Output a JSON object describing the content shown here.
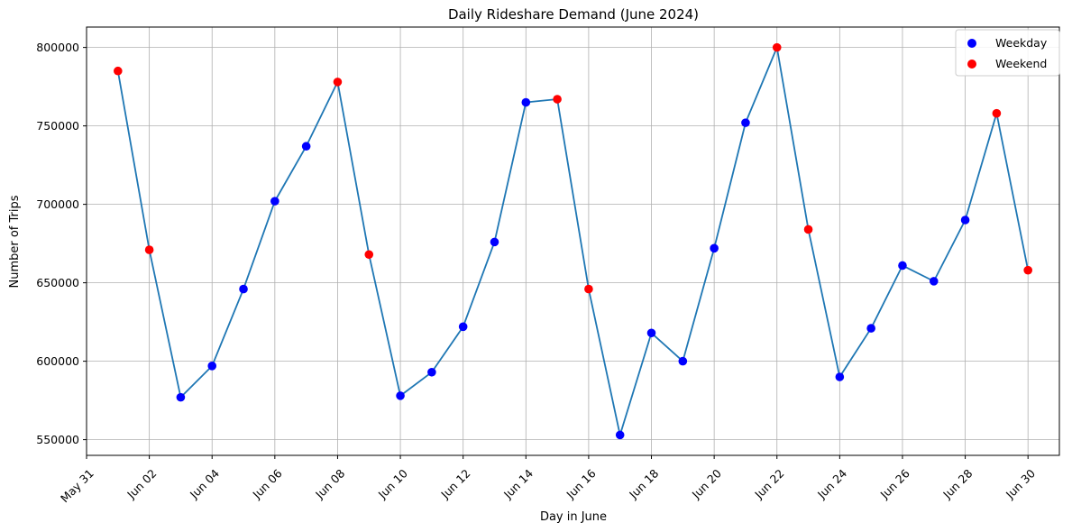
{
  "chart_data": {
    "type": "line",
    "title": "Daily Rideshare Demand (June 2024)",
    "xlabel": "Day in June",
    "ylabel": "Number of Trips",
    "x": [
      "2024-06-01",
      "2024-06-02",
      "2024-06-03",
      "2024-06-04",
      "2024-06-05",
      "2024-06-06",
      "2024-06-07",
      "2024-06-08",
      "2024-06-09",
      "2024-06-10",
      "2024-06-11",
      "2024-06-12",
      "2024-06-13",
      "2024-06-14",
      "2024-06-15",
      "2024-06-16",
      "2024-06-17",
      "2024-06-18",
      "2024-06-19",
      "2024-06-20",
      "2024-06-21",
      "2024-06-22",
      "2024-06-23",
      "2024-06-24",
      "2024-06-25",
      "2024-06-26",
      "2024-06-27",
      "2024-06-28",
      "2024-06-29",
      "2024-06-30"
    ],
    "values": [
      785000,
      671000,
      577000,
      597000,
      646000,
      702000,
      737000,
      778000,
      668000,
      578000,
      593000,
      622000,
      676000,
      765000,
      767000,
      646000,
      553000,
      618000,
      600000,
      672000,
      752000,
      800000,
      684000,
      590000,
      621000,
      661000,
      651000,
      690000,
      758000,
      658000
    ],
    "weekend": [
      true,
      true,
      false,
      false,
      false,
      false,
      false,
      true,
      true,
      false,
      false,
      false,
      false,
      false,
      true,
      true,
      false,
      false,
      false,
      false,
      false,
      true,
      true,
      false,
      false,
      false,
      false,
      false,
      true,
      true
    ],
    "x_tick_labels": [
      "May 31",
      "Jun 02",
      "Jun 04",
      "Jun 06",
      "Jun 08",
      "Jun 10",
      "Jun 12",
      "Jun 14",
      "Jun 16",
      "Jun 18",
      "Jun 20",
      "Jun 22",
      "Jun 24",
      "Jun 26",
      "Jun 28",
      "Jun 30"
    ],
    "x_tick_dates": [
      "2024-05-31",
      "2024-06-02",
      "2024-06-04",
      "2024-06-06",
      "2024-06-08",
      "2024-06-10",
      "2024-06-12",
      "2024-06-14",
      "2024-06-16",
      "2024-06-18",
      "2024-06-20",
      "2024-06-22",
      "2024-06-24",
      "2024-06-26",
      "2024-06-28",
      "2024-06-30"
    ],
    "y_ticks": [
      550000,
      600000,
      650000,
      700000,
      750000,
      800000
    ],
    "xlim": [
      "2024-05-31",
      "2024-07-01"
    ],
    "ylim": [
      540000,
      813000
    ],
    "grid": true,
    "legend": {
      "position": "top-right",
      "entries": [
        {
          "label": "Weekday",
          "color": "#0000ff"
        },
        {
          "label": "Weekend",
          "color": "#ff0000"
        }
      ]
    },
    "line_color": "#1f77b4"
  }
}
